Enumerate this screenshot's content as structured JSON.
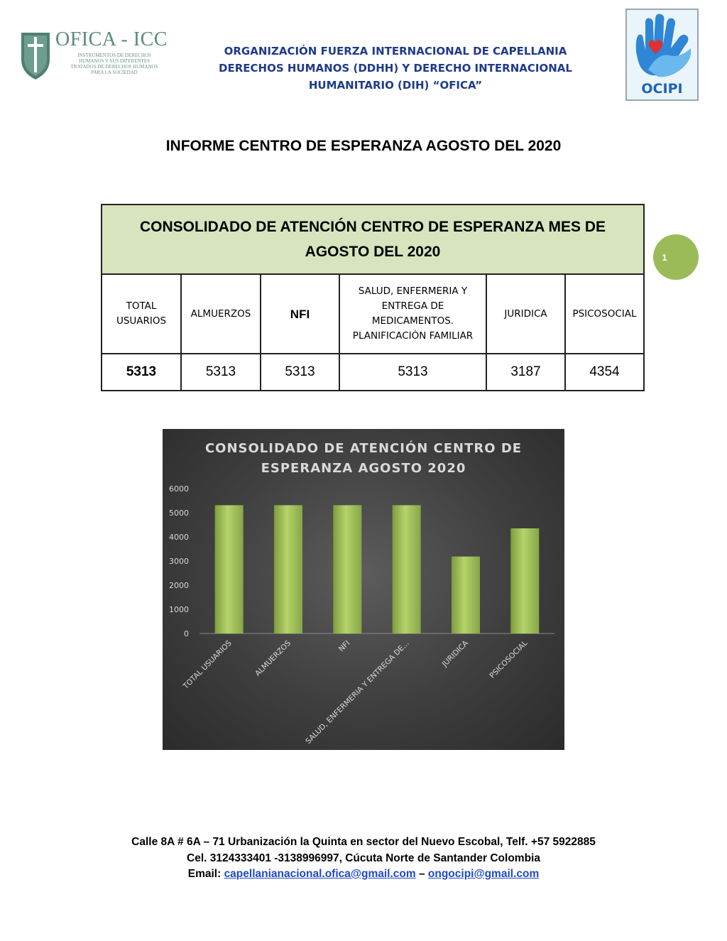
{
  "header": {
    "logo_left_name": "OFICA - ICC",
    "logo_left_subtitle": "INSTRUMENTOS DE DERECHOS HUMANOS Y SUS DIFERENTES TRATADOS DE DERECHOS HUMANOS PARA LA SOCIEDAD",
    "org_title_lines": [
      "ORGANIZACIÓN FUERZA INTERNACIONAL DE CAPELLANIA",
      "DERECHOS HUMANOS (DDHH) Y DERECHO INTERNACIONAL",
      "HUMANITARIO (DIH) “OFICA”"
    ],
    "logo_right_label": "OCIPI",
    "colors": {
      "org_title": "#1f3a8a",
      "ocipi_blue": "#1e63b5",
      "heart": "#e0302f"
    }
  },
  "report_title": "INFORME CENTRO DE ESPERANZA AGOSTO DEL 2020",
  "page_number": "1",
  "table": {
    "title": "CONSOLIDADO DE ATENCIÓN CENTRO DE ESPERANZA MES DE AGOSTO DEL 2020",
    "headers": [
      "TOTAL USUARIOS",
      "ALMUERZOS",
      "NFI",
      "SALUD, ENFERMERIA Y ENTREGA DE MEDICAMENTOS. PLANIFICACIÓN FAMILIAR",
      "JURIDICA",
      "PSICOSOCIAL"
    ],
    "values": [
      "5313",
      "5313",
      "5313",
      "5313",
      "3187",
      "4354"
    ],
    "colors": {
      "title_bg": "#d7e4bd"
    }
  },
  "chart_data": {
    "type": "bar",
    "title": "CONSOLIDADO DE ATENCIÓN CENTRO DE ESPERANZA AGOSTO 2020",
    "title_lines": [
      "CONSOLIDADO DE ATENCIÓN CENTRO DE",
      "ESPERANZA AGOSTO 2020"
    ],
    "categories": [
      "TOTAL USUARIOS",
      "ALMUERZOS",
      "NFI",
      "SALUD, ENFERMERIA Y ENTREGA DE...",
      "JURIDICA",
      "PSICOSOCIAL"
    ],
    "values": [
      5313,
      5313,
      5313,
      5313,
      3187,
      4354
    ],
    "xlabel": "",
    "ylabel": "",
    "ylim": [
      0,
      6000
    ],
    "yticks": [
      "0",
      "1000",
      "2000",
      "3000",
      "4000",
      "5000",
      "6000"
    ],
    "grid": false,
    "legend": "none",
    "colors": {
      "bar": "#9bbb59",
      "background": "#404040",
      "text": "#d9d9d9"
    }
  },
  "footer": {
    "line1": "Calle 8A # 6A – 71 Urbanización la Quinta en sector del Nuevo Escobal, Telf.  +57 5922885",
    "line2": "Cel. 3124333401 -3138996997, Cúcuta Norte de Santander Colombia",
    "email_label": "Email:",
    "email1": "capellanianacional.ofica@gmail.com",
    "separator": "–",
    "email2": "ongocipi@gmail.com"
  }
}
